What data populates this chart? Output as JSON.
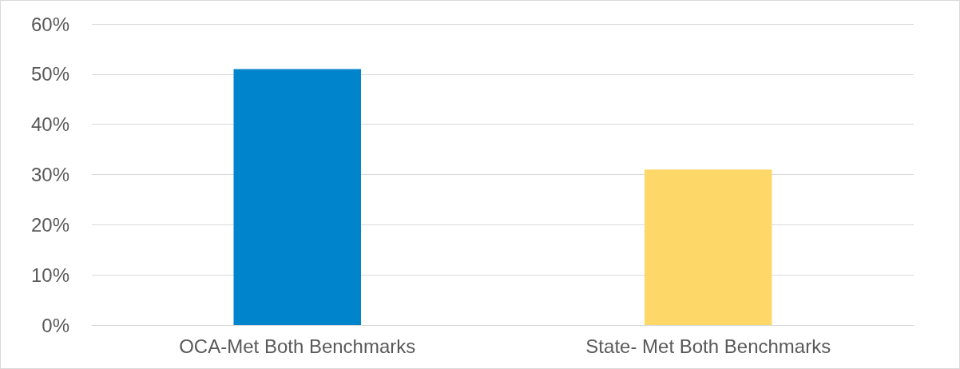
{
  "chart_data": {
    "type": "bar",
    "categories": [
      "OCA-Met Both Benchmarks",
      "State- Met Both Benchmarks"
    ],
    "values": [
      51,
      31
    ],
    "colors": [
      "#0084cc",
      "#fdd868"
    ],
    "ylim": [
      0,
      60
    ],
    "yticks": [
      {
        "value": 0,
        "label": "0%"
      },
      {
        "value": 10,
        "label": "10%"
      },
      {
        "value": 20,
        "label": "20%"
      },
      {
        "value": 30,
        "label": "30%"
      },
      {
        "value": 40,
        "label": "40%"
      },
      {
        "value": 50,
        "label": "50%"
      },
      {
        "value": 60,
        "label": "60%"
      }
    ],
    "grid": true
  }
}
